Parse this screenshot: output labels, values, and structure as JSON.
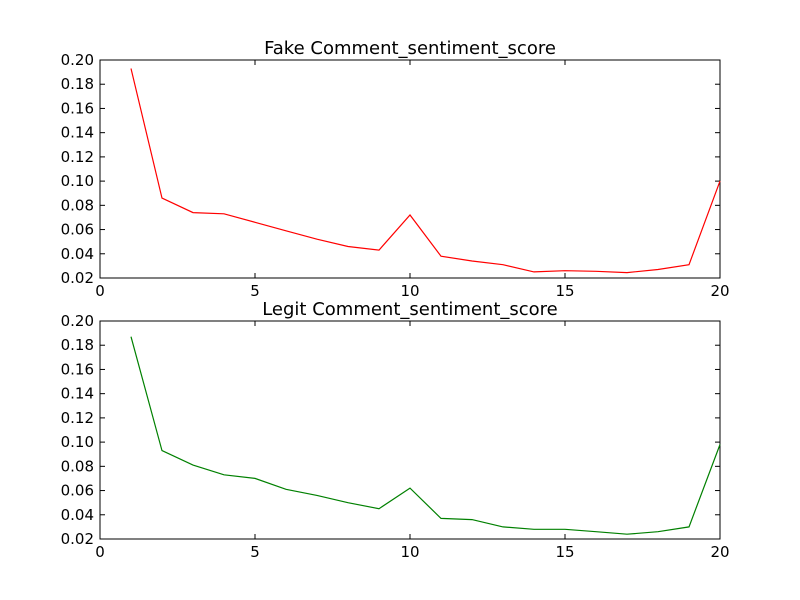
{
  "chart_data": [
    {
      "type": "line",
      "title": "Fake Comment_sentiment_score",
      "xlabel": "",
      "ylabel": "",
      "xlim": [
        0,
        20
      ],
      "ylim": [
        0.02,
        0.2
      ],
      "xticks": [
        0,
        5,
        10,
        15,
        20
      ],
      "xtick_labels": [
        "0",
        "5",
        "10",
        "15",
        "20"
      ],
      "yticks": [
        0.02,
        0.04,
        0.06,
        0.08,
        0.1,
        0.12,
        0.14,
        0.16,
        0.18,
        0.2
      ],
      "ytick_labels": [
        "0.02",
        "0.04",
        "0.06",
        "0.08",
        "0.10",
        "0.12",
        "0.14",
        "0.16",
        "0.18",
        "0.20"
      ],
      "grid": false,
      "color": "#ff0000",
      "series": [
        {
          "x": [
            1,
            2,
            3,
            4,
            5,
            6,
            7,
            8,
            9,
            10,
            11,
            12,
            13,
            14,
            15,
            16,
            17,
            18,
            19,
            20
          ],
          "values": [
            0.193,
            0.086,
            0.074,
            0.073,
            0.066,
            0.059,
            0.052,
            0.046,
            0.043,
            0.072,
            0.038,
            0.034,
            0.031,
            0.025,
            0.026,
            0.0255,
            0.0245,
            0.027,
            0.031,
            0.1
          ]
        }
      ]
    },
    {
      "type": "line",
      "title": "Legit Comment_sentiment_score",
      "xlabel": "",
      "ylabel": "",
      "xlim": [
        0,
        20
      ],
      "ylim": [
        0.02,
        0.2
      ],
      "xticks": [
        0,
        5,
        10,
        15,
        20
      ],
      "xtick_labels": [
        "0",
        "5",
        "10",
        "15",
        "20"
      ],
      "yticks": [
        0.02,
        0.04,
        0.06,
        0.08,
        0.1,
        0.12,
        0.14,
        0.16,
        0.18,
        0.2
      ],
      "ytick_labels": [
        "0.02",
        "0.04",
        "0.06",
        "0.08",
        "0.10",
        "0.12",
        "0.14",
        "0.16",
        "0.18",
        "0.20"
      ],
      "grid": false,
      "color": "#008000",
      "series": [
        {
          "x": [
            1,
            2,
            3,
            4,
            5,
            6,
            7,
            8,
            9,
            10,
            11,
            12,
            13,
            14,
            15,
            16,
            17,
            18,
            19,
            20
          ],
          "values": [
            0.187,
            0.093,
            0.081,
            0.073,
            0.07,
            0.061,
            0.056,
            0.05,
            0.045,
            0.062,
            0.037,
            0.036,
            0.03,
            0.028,
            0.028,
            0.026,
            0.024,
            0.026,
            0.03,
            0.098
          ]
        }
      ]
    }
  ]
}
